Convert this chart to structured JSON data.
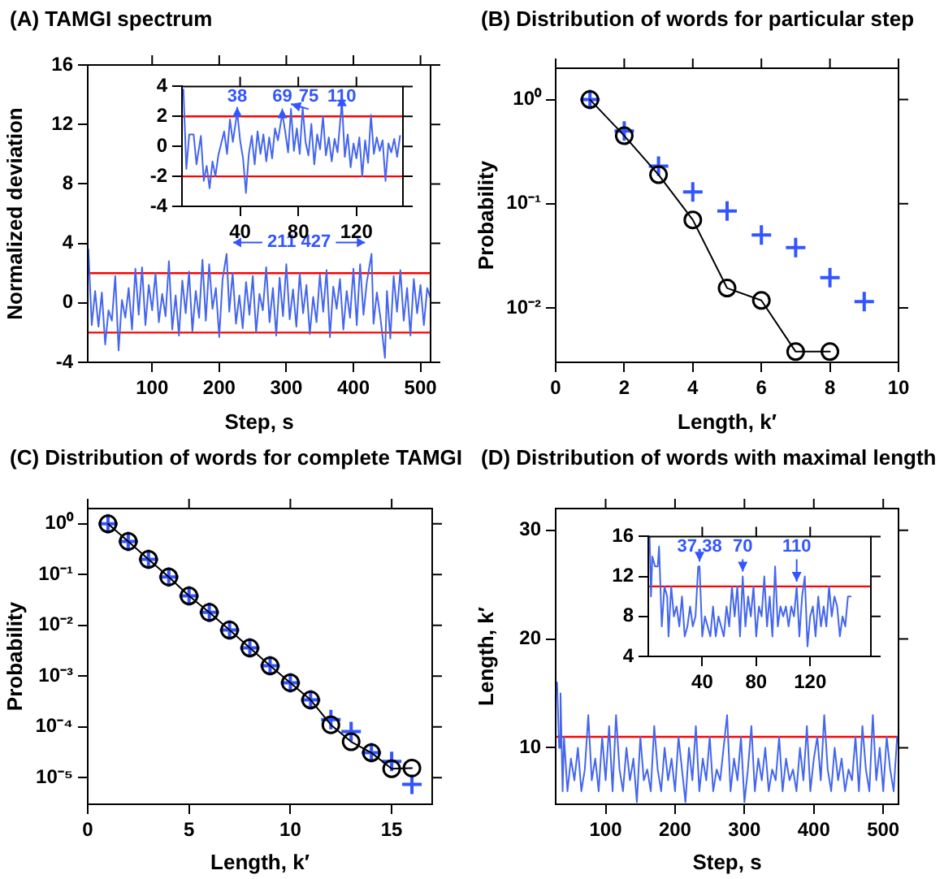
{
  "chart_data": [
    {
      "type": "line",
      "title": "(A) TAMGI spectrum",
      "xlabel": "Step, s",
      "ylabel": "Normalized deviation",
      "color": "#4466ee",
      "grid": false,
      "xlim": [
        4,
        515
      ],
      "ylim": [
        -4,
        16
      ],
      "xticks": [
        100,
        200,
        300,
        400,
        500
      ],
      "yticks": [
        -4,
        0,
        4,
        8,
        12,
        16
      ],
      "ref_lines": [
        {
          "axis": "y",
          "value": 2,
          "color": "#ff0000"
        },
        {
          "axis": "y",
          "value": -2,
          "color": "#ff0000"
        }
      ],
      "annotations": [
        {
          "text": "211",
          "x": 211,
          "y": 3.3
        },
        {
          "text": "427",
          "x": 427,
          "y": 3.3
        }
      ],
      "x": [
        5,
        10,
        15,
        20,
        25,
        30,
        35,
        40,
        45,
        50,
        55,
        60,
        65,
        70,
        75,
        80,
        85,
        90,
        95,
        100,
        105,
        110,
        115,
        120,
        125,
        130,
        135,
        140,
        145,
        150,
        155,
        160,
        165,
        170,
        175,
        180,
        185,
        190,
        195,
        200,
        205,
        211,
        215,
        220,
        225,
        230,
        235,
        240,
        245,
        250,
        255,
        260,
        265,
        270,
        275,
        280,
        285,
        290,
        295,
        300,
        305,
        310,
        315,
        320,
        325,
        330,
        335,
        340,
        345,
        350,
        355,
        360,
        365,
        370,
        375,
        380,
        385,
        390,
        395,
        400,
        405,
        410,
        415,
        420,
        427,
        430,
        435,
        440,
        447,
        450,
        455,
        460,
        465,
        470,
        475,
        480,
        485,
        490,
        495,
        500,
        505,
        510,
        515
      ],
      "values": [
        3.6,
        -1.5,
        0.8,
        -1.6,
        0.7,
        -2.8,
        -0.5,
        -1.2,
        1.8,
        -3.2,
        0.2,
        -1.0,
        1.0,
        -1.8,
        2.3,
        -0.8,
        2.4,
        -1.5,
        1.2,
        -0.5,
        2.0,
        -1.3,
        0.6,
        -0.9,
        2.8,
        -1.8,
        0.5,
        -2.2,
        1.5,
        -0.7,
        2.1,
        -1.9,
        0.8,
        -1.0,
        2.9,
        -1.2,
        2.6,
        -0.4,
        1.0,
        -2.3,
        1.6,
        3.3,
        -0.6,
        2.0,
        -1.4,
        0.5,
        -1.7,
        1.4,
        -0.8,
        1.8,
        -2.0,
        0.6,
        -0.5,
        2.4,
        -1.3,
        1.0,
        -2.2,
        1.7,
        -0.9,
        2.6,
        -1.1,
        0.9,
        -1.6,
        2.0,
        -0.7,
        1.2,
        -2.1,
        0.4,
        -1.3,
        1.9,
        -0.6,
        2.2,
        -2.3,
        1.1,
        -0.4,
        1.6,
        -1.8,
        0.8,
        -1.0,
        2.3,
        -1.5,
        2.6,
        -0.8,
        1.4,
        3.3,
        -1.4,
        0.7,
        -0.9,
        -3.7,
        0.8,
        -2.4,
        1.8,
        -0.6,
        2.2,
        -1.2,
        1.0,
        -2.2,
        1.6,
        -0.7,
        1.2,
        -1.5,
        1.0,
        0.3
      ]
    },
    {
      "type": "line",
      "color": "#4466ee",
      "grid": false,
      "xlim": [
        0,
        152
      ],
      "ylim": [
        -4,
        4
      ],
      "xticks": [
        40,
        80,
        120
      ],
      "yticks": [
        -4,
        -2,
        0,
        2,
        4
      ],
      "ref_lines": [
        {
          "axis": "y",
          "value": 2,
          "color": "#ff0000"
        },
        {
          "axis": "y",
          "value": -2,
          "color": "#ff0000"
        }
      ],
      "annotations": [
        {
          "text": "38",
          "x": 38,
          "y": 2.3
        },
        {
          "text": "69",
          "x": 69,
          "y": 2.2
        },
        {
          "text": "75",
          "x": 75,
          "y": 2.5
        },
        {
          "text": "110",
          "x": 110,
          "y": 3.0
        }
      ],
      "x": [
        1,
        3,
        5,
        8,
        10,
        13,
        15,
        17,
        19,
        21,
        23,
        25,
        27,
        29,
        31,
        33,
        35,
        38,
        40,
        42,
        44,
        46,
        48,
        50,
        52,
        54,
        56,
        58,
        60,
        62,
        64,
        66,
        69,
        71,
        73,
        75,
        77,
        79,
        81,
        83,
        85,
        87,
        89,
        91,
        93,
        95,
        97,
        99,
        101,
        103,
        105,
        107,
        110,
        112,
        114,
        116,
        118,
        120,
        122,
        124,
        126,
        128,
        130,
        132,
        134,
        136,
        138,
        140,
        142,
        144,
        146,
        148,
        150
      ],
      "values": [
        3.8,
        -1.5,
        0.8,
        0.8,
        -1.2,
        0.7,
        -2.3,
        -1.3,
        -2.8,
        -1.0,
        -2.0,
        -0.6,
        0.2,
        1.0,
        -0.5,
        1.8,
        0.3,
        2.3,
        0.4,
        -0.8,
        -3.1,
        -0.5,
        0.7,
        -1.2,
        1.0,
        -0.5,
        0.8,
        -1.0,
        0.6,
        -0.8,
        1.2,
        0.4,
        2.2,
        1.0,
        -0.4,
        2.5,
        -0.3,
        1.2,
        -0.5,
        2.6,
        0.3,
        -0.6,
        1.5,
        -1.2,
        0.8,
        -0.2,
        2.0,
        -0.6,
        0.6,
        -1.0,
        0.5,
        -0.4,
        3.0,
        -0.7,
        0.8,
        -1.4,
        0.2,
        -0.8,
        0.6,
        -2.0,
        0.4,
        -1.1,
        2.1,
        -0.5,
        0.6,
        -0.3,
        0.4,
        -2.3,
        0.2,
        -0.4,
        0.5,
        -0.7,
        0.7
      ]
    },
    {
      "type": "line",
      "title": "(B) Distribution of words for particular step",
      "xlabel": "Length, k′",
      "ylabel": "Probability",
      "log": true,
      "grid": false,
      "xlim": [
        0,
        10
      ],
      "ylim": [
        0.003,
        2
      ],
      "xticks": [
        0,
        2,
        4,
        6,
        8,
        10
      ],
      "yticks": [
        {
          "value": 1,
          "label": "10⁰"
        },
        {
          "value": 0.1,
          "label": "10⁻¹"
        },
        {
          "value": 0.01,
          "label": "10⁻²"
        }
      ],
      "series": [
        {
          "type": "line",
          "marker": "circle",
          "color": "#000000",
          "x": [
            1,
            2,
            3,
            4,
            5,
            6,
            7,
            8
          ],
          "values": [
            1,
            0.45,
            0.19,
            0.07,
            0.0155,
            0.0118,
            0.0038,
            0.0038
          ]
        },
        {
          "type": "scatter",
          "marker": "cross",
          "color": "#3355ff",
          "x": [
            1,
            2,
            3,
            4,
            5,
            6,
            7,
            8,
            9
          ],
          "values": [
            1,
            0.5,
            0.23,
            0.13,
            0.085,
            0.05,
            0.038,
            0.0195,
            0.0115
          ]
        }
      ]
    },
    {
      "type": "line",
      "title": "(C) Distribution of words for complete TAMGI",
      "xlabel": "Length, k′",
      "ylabel": "Probability",
      "log": true,
      "grid": false,
      "xlim": [
        0,
        17
      ],
      "ylim": [
        3e-06,
        2
      ],
      "xticks": [
        0,
        5,
        10,
        15
      ],
      "yticks": [
        {
          "value": 1,
          "label": "10⁰"
        },
        {
          "value": 0.1,
          "label": "10⁻¹"
        },
        {
          "value": 0.01,
          "label": "10⁻²"
        },
        {
          "value": 0.001,
          "label": "10⁻³"
        },
        {
          "value": 0.0001,
          "label": "10⁻⁴"
        },
        {
          "value": 1e-05,
          "label": "10⁻⁵"
        }
      ],
      "series": [
        {
          "type": "line",
          "marker": "circle",
          "color": "#000000",
          "x": [
            1,
            2,
            3,
            4,
            5,
            6,
            7,
            8,
            9,
            10,
            11,
            12,
            13,
            14,
            15,
            16
          ],
          "values": [
            1,
            0.45,
            0.2,
            0.09,
            0.038,
            0.018,
            0.0081,
            0.0036,
            0.0016,
            0.00074,
            0.00034,
            0.00011,
            5.1e-05,
            3.1e-05,
            1.5e-05,
            1.55e-05
          ]
        },
        {
          "type": "scatter",
          "marker": "cross",
          "color": "#3355ff",
          "x": [
            1,
            2,
            3,
            4,
            5,
            6,
            7,
            8,
            9,
            10,
            11,
            12,
            13,
            14,
            15,
            16
          ],
          "values": [
            1,
            0.45,
            0.2,
            0.09,
            0.038,
            0.018,
            0.0081,
            0.0036,
            0.0016,
            0.00074,
            0.00034,
            0.00014,
            8.1e-05,
            3.1e-05,
            2.1e-05,
            7.4e-06
          ]
        }
      ]
    },
    {
      "type": "line",
      "title": "(D) Distribution of words with maximal length",
      "xlabel": "Step, s",
      "ylabel": "Length, k′",
      "color": "#4466ee",
      "grid": false,
      "xlim": [
        28,
        522
      ],
      "ylim": [
        4.8,
        32
      ],
      "xticks": [
        100,
        200,
        300,
        400,
        500
      ],
      "yticks": [
        10,
        20,
        30
      ],
      "ref_lines": [
        {
          "axis": "y",
          "value": 11,
          "color": "#ff0000"
        }
      ],
      "x": [
        30,
        33,
        35,
        38,
        40,
        45,
        50,
        55,
        60,
        65,
        70,
        75,
        80,
        85,
        90,
        95,
        100,
        105,
        110,
        115,
        120,
        125,
        130,
        135,
        140,
        145,
        150,
        155,
        160,
        165,
        170,
        175,
        180,
        185,
        190,
        195,
        200,
        205,
        210,
        215,
        220,
        225,
        230,
        235,
        240,
        245,
        250,
        255,
        260,
        265,
        270,
        275,
        280,
        285,
        290,
        295,
        300,
        305,
        310,
        315,
        320,
        325,
        330,
        335,
        340,
        345,
        350,
        355,
        360,
        365,
        370,
        375,
        380,
        385,
        390,
        395,
        400,
        405,
        410,
        415,
        420,
        425,
        430,
        435,
        440,
        445,
        450,
        455,
        460,
        465,
        470,
        475,
        480,
        485,
        490,
        495,
        500,
        505,
        510,
        515,
        520
      ],
      "values": [
        16,
        10,
        15,
        6,
        11,
        6,
        9,
        7,
        10,
        6,
        8,
        13,
        7,
        9,
        6,
        11,
        7,
        12,
        6,
        13,
        8,
        6,
        10,
        7,
        9,
        5,
        11,
        7,
        8,
        6,
        12,
        8,
        6,
        10,
        7,
        9,
        6,
        11,
        8,
        5,
        10,
        7,
        12,
        6,
        9,
        7,
        11,
        6,
        8,
        7,
        10,
        13,
        6,
        9,
        7,
        11,
        5,
        8,
        12,
        6,
        9,
        7,
        10,
        6,
        8,
        7,
        11,
        6,
        9,
        7,
        8,
        6,
        10,
        7,
        12,
        6,
        9,
        11,
        7,
        13,
        8,
        6,
        10,
        7,
        9,
        6,
        8,
        7,
        11,
        6,
        12,
        8,
        6,
        13,
        7,
        10,
        6,
        11,
        8,
        6,
        11
      ]
    },
    {
      "type": "line",
      "color": "#4466ee",
      "grid": false,
      "xlim": [
        0,
        165
      ],
      "ylim": [
        4,
        16
      ],
      "xticks": [
        40,
        80,
        120
      ],
      "yticks": [
        4,
        8,
        12,
        16
      ],
      "ref_lines": [
        {
          "axis": "y",
          "value": 11,
          "color": "#ff0000"
        }
      ],
      "annotations": [
        {
          "text": "37,38",
          "x": 38,
          "y": 13
        },
        {
          "text": "70",
          "x": 70,
          "y": 12
        },
        {
          "text": "110",
          "x": 110,
          "y": 11
        }
      ],
      "x": [
        1,
        2,
        3,
        5,
        7,
        8,
        10,
        12,
        14,
        15,
        17,
        19,
        21,
        23,
        25,
        27,
        29,
        31,
        33,
        35,
        37,
        38,
        40,
        42,
        44,
        46,
        48,
        50,
        52,
        54,
        56,
        58,
        60,
        62,
        64,
        66,
        68,
        70,
        72,
        74,
        76,
        78,
        80,
        82,
        84,
        86,
        88,
        90,
        92,
        94,
        96,
        98,
        100,
        102,
        104,
        106,
        108,
        110,
        112,
        114,
        116,
        118,
        120,
        122,
        124,
        126,
        128,
        130,
        132,
        134,
        136,
        138,
        140,
        142,
        144,
        146,
        148,
        150
      ],
      "values": [
        16,
        10,
        14,
        13,
        13,
        15,
        7,
        11,
        10,
        6,
        11,
        8,
        9,
        7,
        10,
        6,
        7,
        9,
        7,
        8,
        13,
        13,
        6,
        8,
        7,
        6,
        9,
        6,
        8,
        7,
        6,
        9,
        7,
        11,
        8,
        11,
        6,
        12,
        7,
        10,
        8,
        11,
        6,
        9,
        8,
        12,
        7,
        10,
        6,
        13,
        7,
        9,
        8,
        9,
        7,
        9,
        8,
        11,
        6,
        10,
        12,
        5,
        8,
        9,
        6,
        10,
        7,
        9,
        7,
        11,
        8,
        10,
        9,
        6,
        8,
        7,
        10,
        10
      ]
    }
  ]
}
